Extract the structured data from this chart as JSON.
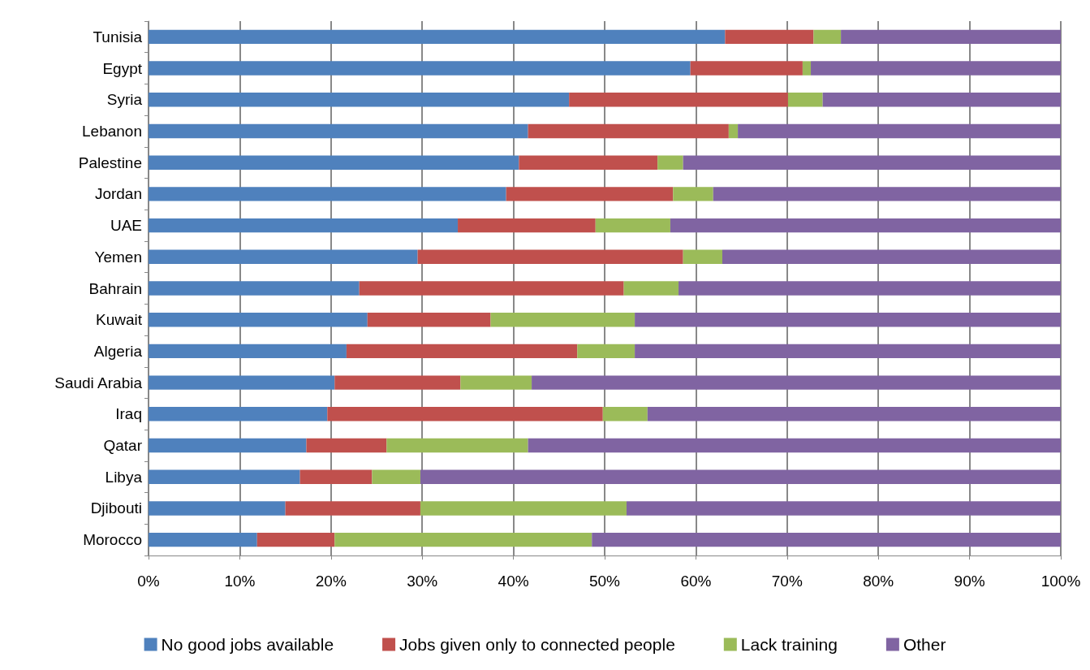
{
  "chart_data": {
    "type": "bar",
    "orientation": "horizontal",
    "stacked": true,
    "grid": "x",
    "legend": "bottom",
    "categories": [
      "Tunisia",
      "Egypt",
      "Syria",
      "Lebanon",
      "Palestine",
      "Jordan",
      "UAE",
      "Yemen",
      "Bahrain",
      "Kuwait",
      "Algeria",
      "Saudi Arabia",
      "Iraq",
      "Qatar",
      "Libya",
      "Djibouti",
      "Morocco"
    ],
    "xlim": [
      0,
      100
    ],
    "xticks": [
      {
        "value": 0,
        "label": "0%"
      },
      {
        "value": 10,
        "label": "10%"
      },
      {
        "value": 20,
        "label": "20%"
      },
      {
        "value": 30,
        "label": "30%"
      },
      {
        "value": 40,
        "label": "40%"
      },
      {
        "value": 50,
        "label": "50%"
      },
      {
        "value": 60,
        "label": "60%"
      },
      {
        "value": 70,
        "label": "70%"
      },
      {
        "value": 80,
        "label": "80%"
      },
      {
        "value": 90,
        "label": "90%"
      },
      {
        "value": 100,
        "label": "100%"
      }
    ],
    "series": [
      {
        "name": "No good jobs available",
        "color": "#4f81bd",
        "values": [
          63.2,
          59.4,
          46.1,
          41.6,
          40.6,
          39.2,
          33.9,
          29.5,
          23.1,
          24.0,
          21.7,
          20.4,
          19.6,
          17.3,
          16.6,
          15.0,
          11.9
        ]
      },
      {
        "name": "Jobs given only to connected people",
        "color": "#c0504d",
        "values": [
          9.7,
          12.3,
          24.0,
          22.0,
          15.2,
          18.3,
          15.1,
          29.1,
          29.0,
          13.5,
          25.3,
          13.8,
          30.2,
          8.8,
          7.9,
          14.8,
          8.5
        ]
      },
      {
        "name": "Lack training",
        "color": "#9bbb59",
        "values": [
          3.0,
          0.9,
          3.8,
          1.0,
          2.8,
          4.4,
          8.2,
          4.3,
          6.0,
          15.8,
          6.3,
          7.8,
          4.9,
          15.5,
          5.3,
          22.6,
          28.2
        ]
      },
      {
        "name": "Other",
        "color": "#8064a2",
        "values": [
          24.1,
          27.4,
          26.1,
          35.4,
          41.4,
          38.1,
          42.8,
          37.1,
          41.9,
          46.7,
          46.7,
          58.0,
          45.3,
          58.4,
          70.2,
          47.6,
          51.4
        ]
      }
    ]
  }
}
